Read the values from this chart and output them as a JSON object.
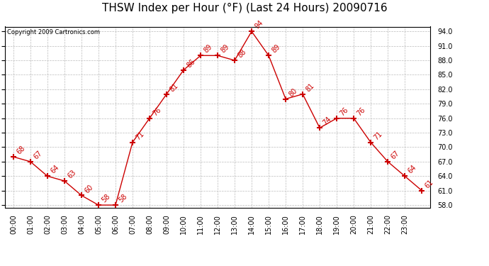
{
  "title": "THSW Index per Hour (°F) (Last 24 Hours) 20090716",
  "copyright": "Copyright 2009 Cartronics.com",
  "hours": [
    "00:00",
    "01:00",
    "02:00",
    "03:00",
    "04:00",
    "05:00",
    "06:00",
    "07:00",
    "08:00",
    "09:00",
    "10:00",
    "11:00",
    "12:00",
    "13:00",
    "14:00",
    "15:00",
    "16:00",
    "17:00",
    "18:00",
    "19:00",
    "20:00",
    "21:00",
    "22:00",
    "23:00"
  ],
  "values": [
    68,
    67,
    64,
    63,
    60,
    58,
    58,
    71,
    76,
    81,
    86,
    89,
    89,
    88,
    94,
    89,
    80,
    81,
    74,
    76,
    76,
    71,
    67,
    64,
    61
  ],
  "yticks": [
    58.0,
    61.0,
    64.0,
    67.0,
    70.0,
    73.0,
    76.0,
    79.0,
    82.0,
    85.0,
    88.0,
    91.0,
    94.0
  ],
  "ylim_min": 57.5,
  "ylim_max": 95.0,
  "line_color": "#cc0000",
  "bg_color": "#ffffff",
  "grid_color": "#bbbbbb",
  "title_fontsize": 11,
  "tick_fontsize": 7,
  "annot_fontsize": 7
}
